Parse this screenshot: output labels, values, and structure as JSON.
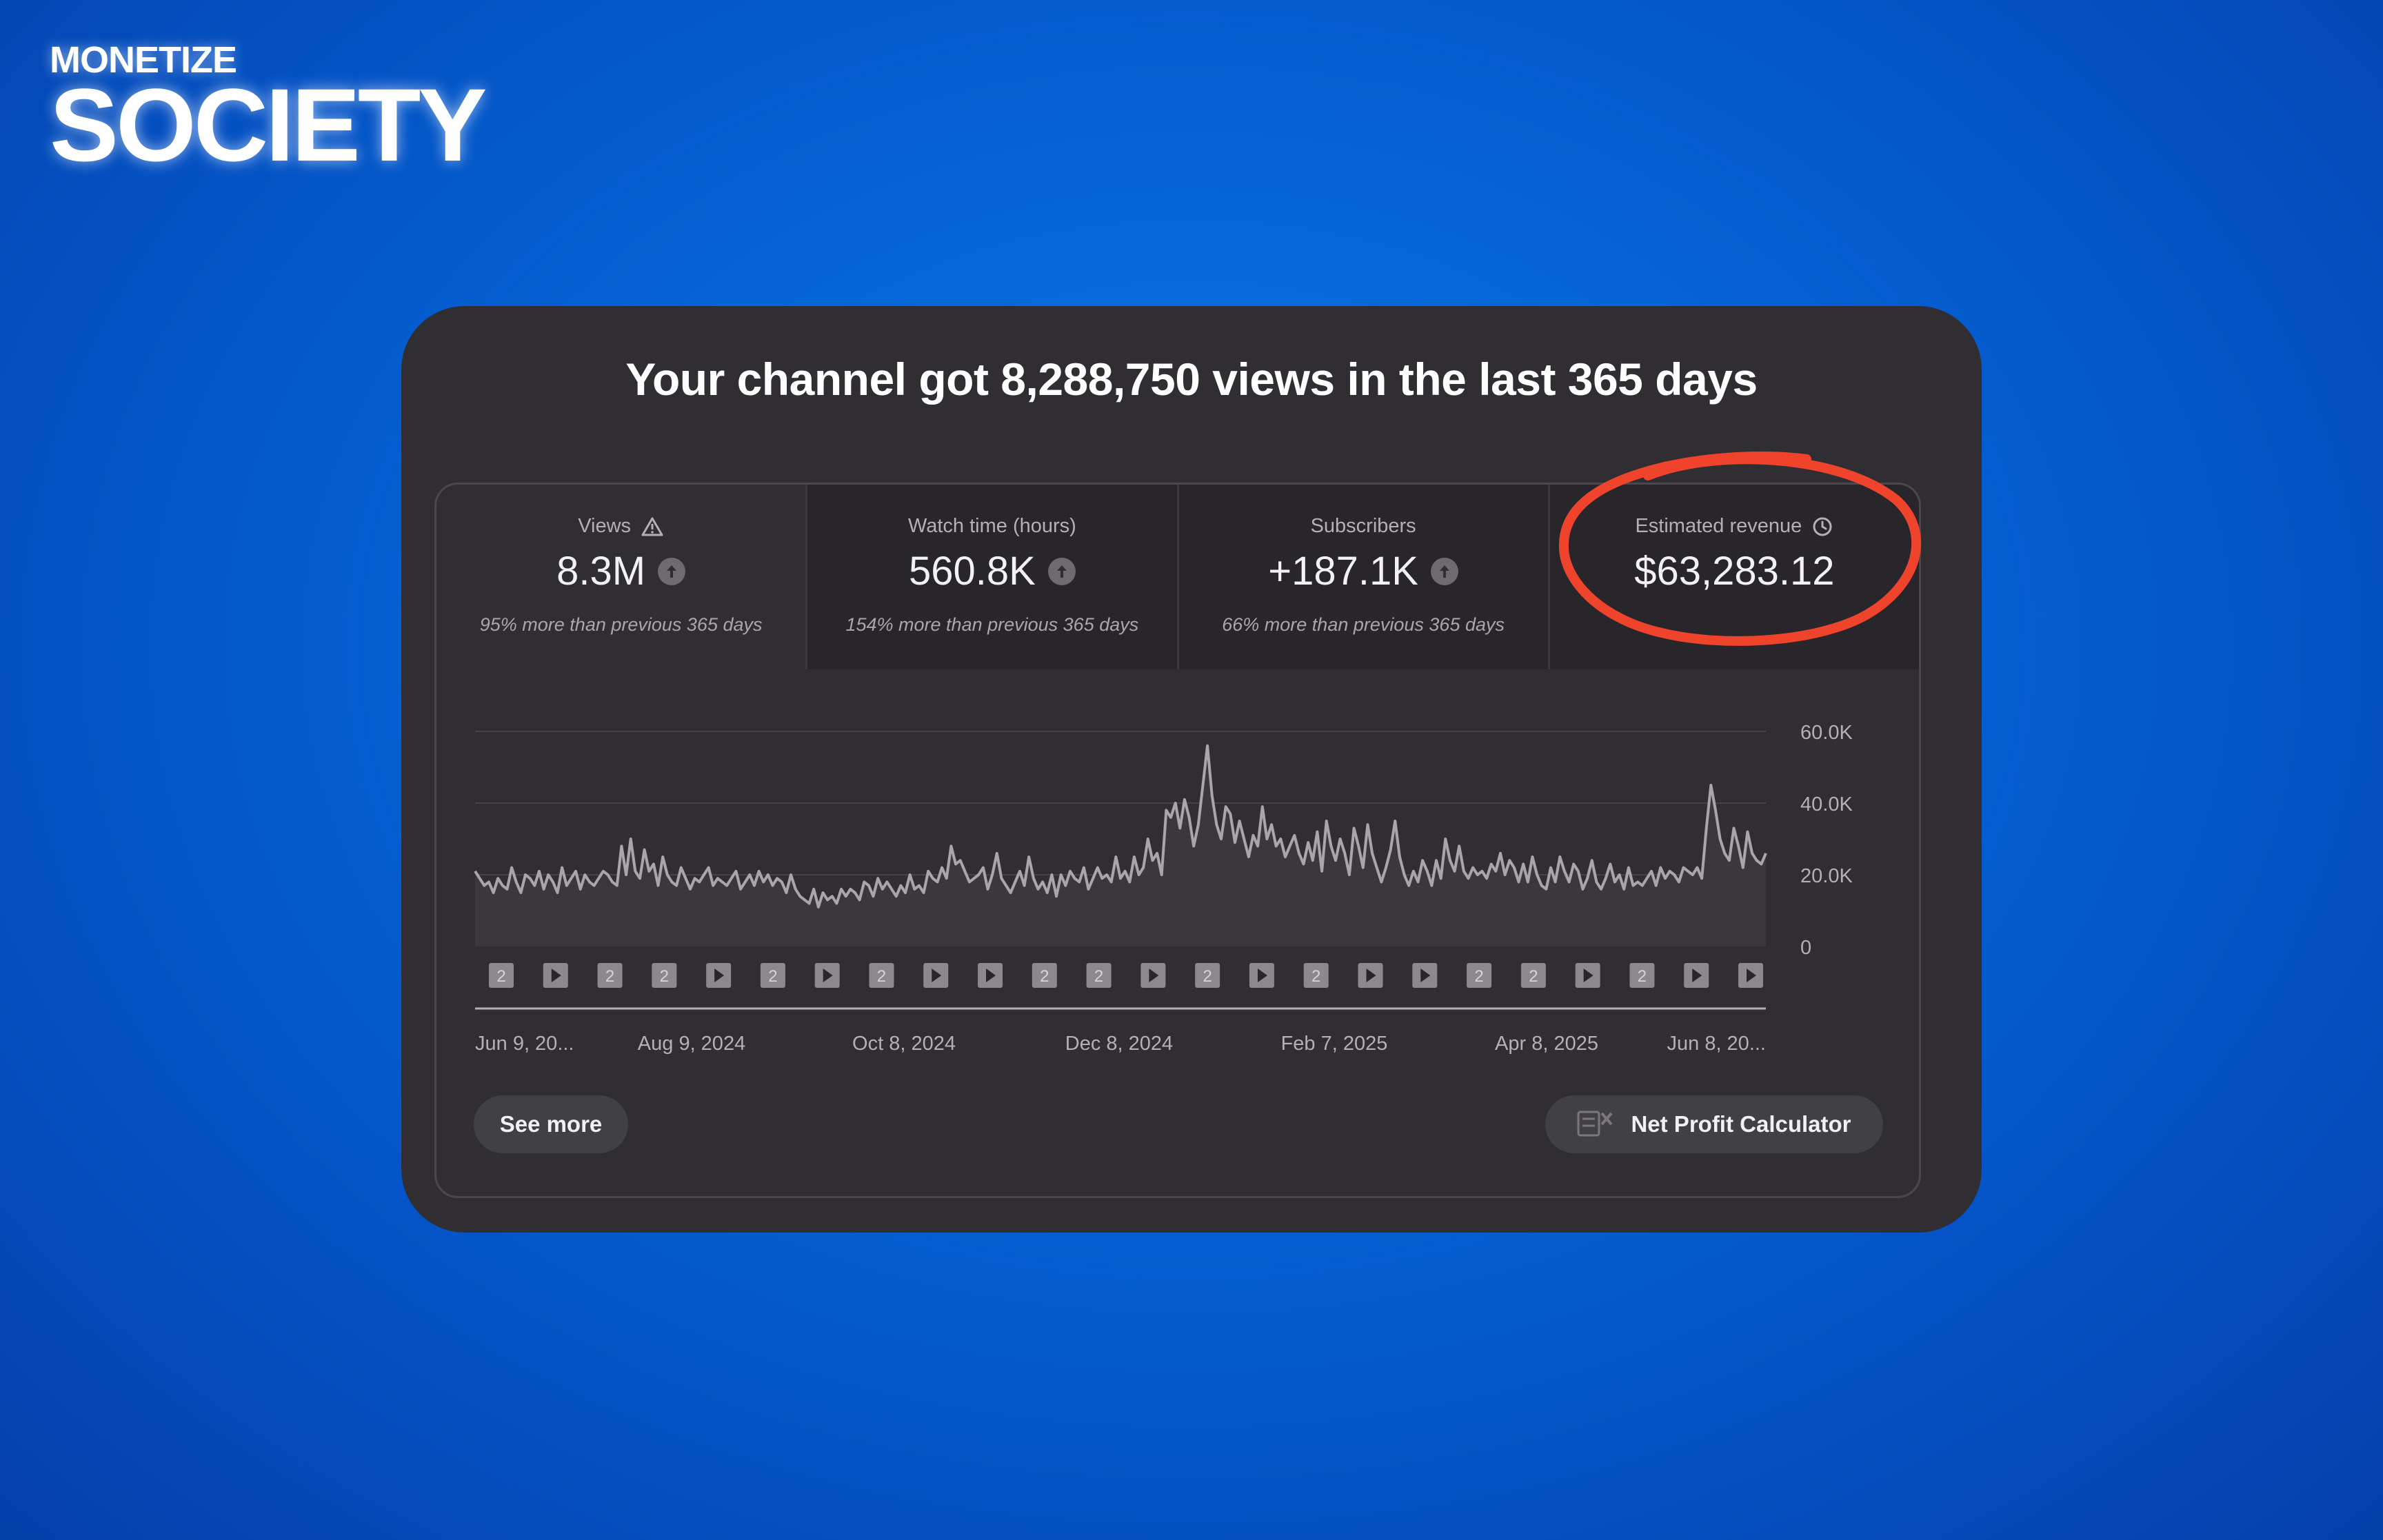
{
  "brand": {
    "line1": "MONETIZE",
    "line2": "SOCIETY"
  },
  "headline": "Your channel got 8,288,750 views in the last 365 days",
  "metrics": [
    {
      "label": "Views",
      "icon": "warning-icon",
      "value": "8.3M",
      "trend_icon": "arrow-up-icon",
      "sub": "95% more than previous 365 days"
    },
    {
      "label": "Watch time (hours)",
      "value": "560.8K",
      "trend_icon": "arrow-up-icon",
      "sub": "154% more than previous 365 days"
    },
    {
      "label": "Subscribers",
      "value": "+187.1K",
      "trend_icon": "arrow-up-icon",
      "sub": "66% more than previous 365 days"
    },
    {
      "label": "Estimated revenue",
      "icon": "clock-icon",
      "value": "$63,283.12",
      "highlight_color": "#f0432b"
    }
  ],
  "chart_data": {
    "type": "line",
    "ylim": [
      0,
      60000
    ],
    "y_ticks": [
      "0",
      "20.0K",
      "40.0K",
      "60.0K"
    ],
    "x_labels": [
      "Jun 9, 20...",
      "Aug 9, 2024",
      "Oct 8, 2024",
      "Dec 8, 2024",
      "Feb 7, 2025",
      "Apr 8, 2025",
      "Jun 8, 20..."
    ],
    "series": [
      {
        "values": [
          21000,
          19000,
          17000,
          18000,
          15000,
          19000,
          17000,
          16000,
          22000,
          18000,
          15000,
          20000,
          19000,
          17000,
          21000,
          16000,
          20000,
          18000,
          15000,
          22000,
          17000,
          19000,
          21000,
          16000,
          20000,
          18000,
          17000,
          19000,
          21000,
          20000,
          18000,
          17000,
          28000,
          20000,
          30000,
          21000,
          19000,
          27000,
          21000,
          23000,
          17000,
          25000,
          20000,
          18000,
          17000,
          22000,
          19000,
          16000,
          19000,
          18000,
          20000,
          22000,
          17000,
          19000,
          18000,
          17000,
          19000,
          21000,
          16000,
          18000,
          20000,
          17000,
          21000,
          18000,
          20000,
          17000,
          19000,
          18000,
          15000,
          20000,
          16000,
          14000,
          13000,
          12000,
          16000,
          11000,
          15000,
          13000,
          14000,
          12000,
          16000,
          14000,
          16000,
          15000,
          13000,
          18000,
          17000,
          14000,
          19000,
          16000,
          18000,
          16000,
          14000,
          17000,
          15000,
          20000,
          16000,
          17000,
          15000,
          21000,
          19000,
          18000,
          22000,
          19000,
          28000,
          23000,
          24000,
          21000,
          18000,
          19000,
          20000,
          22000,
          16000,
          20000,
          26000,
          19000,
          17000,
          15000,
          18000,
          21000,
          17000,
          25000,
          19000,
          16000,
          18000,
          15000,
          20000,
          14000,
          20000,
          17000,
          21000,
          19000,
          18000,
          22000,
          16000,
          19000,
          22000,
          19000,
          20000,
          18000,
          25000,
          19000,
          21000,
          18000,
          25000,
          20000,
          22000,
          30000,
          24000,
          26000,
          20000,
          38000,
          36000,
          40000,
          33000,
          41000,
          36000,
          28000,
          34000,
          45000,
          56000,
          42000,
          34000,
          30000,
          39000,
          37000,
          29000,
          35000,
          30000,
          25000,
          31000,
          28000,
          39000,
          30000,
          34000,
          28000,
          30000,
          25000,
          28000,
          31000,
          26000,
          23000,
          29000,
          24000,
          32000,
          21000,
          35000,
          28000,
          24000,
          30000,
          26000,
          20000,
          33000,
          28000,
          22000,
          34000,
          26000,
          22000,
          18000,
          22000,
          27000,
          35000,
          25000,
          20000,
          17000,
          21000,
          18000,
          24000,
          21000,
          17000,
          24000,
          19000,
          30000,
          24000,
          21000,
          28000,
          21000,
          19000,
          22000,
          20000,
          21000,
          19000,
          23000,
          21000,
          26000,
          20000,
          24000,
          22000,
          18000,
          23000,
          18000,
          25000,
          20000,
          17000,
          16000,
          22000,
          18000,
          25000,
          21000,
          18000,
          23000,
          21000,
          16000,
          19000,
          24000,
          18000,
          16000,
          19000,
          23000,
          18000,
          20000,
          16000,
          22000,
          17000,
          18000,
          17000,
          19000,
          21000,
          17000,
          22000,
          19000,
          21000,
          20000,
          18000,
          22000,
          21000,
          20000,
          22000,
          19000,
          33000,
          45000,
          38000,
          30000,
          26000,
          24000,
          33000,
          28000,
          22000,
          32000,
          26000,
          24000,
          23000,
          26000
        ]
      }
    ],
    "markers": [
      "2",
      "play",
      "2",
      "2",
      "play",
      "2",
      "play",
      "2",
      "play",
      "play",
      "2",
      "2",
      "play",
      "2",
      "play",
      "2",
      "play",
      "play",
      "2",
      "2",
      "play",
      "2",
      "play",
      "play"
    ],
    "line_color": "#a8a6ab",
    "area_color": "#3a383d"
  },
  "buttons": {
    "see_more": "See more",
    "npc": "Net Profit Calculator"
  }
}
